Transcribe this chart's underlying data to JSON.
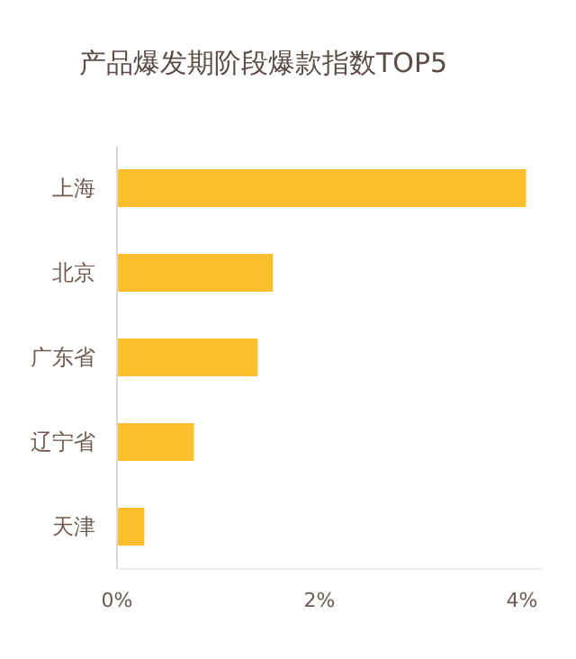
{
  "chart_data": {
    "type": "bar",
    "title": "产品爆发期阶段爆款指数TOP5",
    "orientation": "horizontal",
    "categories": [
      "上海",
      "北京",
      "广东省",
      "辽宁省",
      "天津"
    ],
    "values": [
      4.04,
      1.54,
      1.39,
      0.76,
      0.27
    ],
    "color": "#fdbf2d",
    "xlim": [
      0,
      4.2
    ],
    "xticks": [
      {
        "value": 0,
        "label": "0%"
      },
      {
        "value": 2,
        "label": "2%"
      },
      {
        "value": 4,
        "label": "4%"
      }
    ]
  }
}
